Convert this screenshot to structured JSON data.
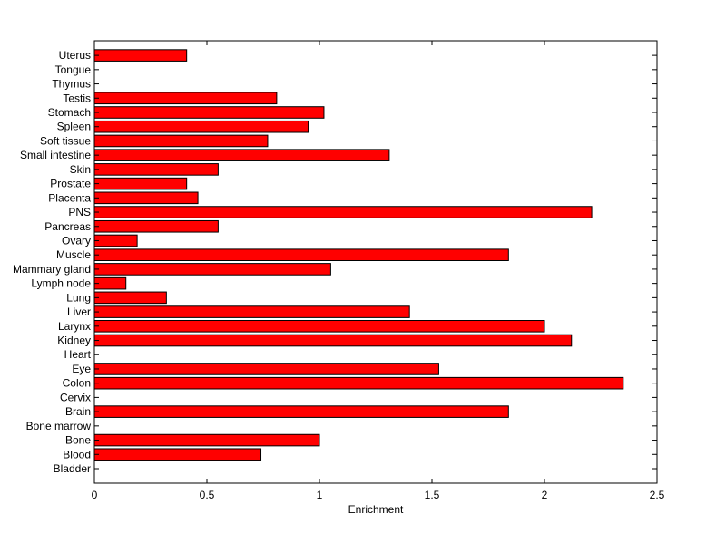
{
  "chart_data": {
    "type": "bar",
    "orientation": "horizontal",
    "xlabel": "Enrichment",
    "xlim": [
      0,
      2.5
    ],
    "xticks": [
      "0",
      "0.5",
      "1",
      "1.5",
      "2",
      "2.5"
    ],
    "grid": false,
    "bar_color": "#ff0000",
    "categories": [
      "Bladder",
      "Blood",
      "Bone",
      "Bone marrow",
      "Brain",
      "Cervix",
      "Colon",
      "Eye",
      "Heart",
      "Kidney",
      "Larynx",
      "Liver",
      "Lung",
      "Lymph node",
      "Mammary gland",
      "Muscle",
      "Ovary",
      "Pancreas",
      "PNS",
      "Placenta",
      "Prostate",
      "Skin",
      "Small intestine",
      "Soft tissue",
      "Spleen",
      "Stomach",
      "Testis",
      "Thymus",
      "Tongue",
      "Uterus"
    ],
    "values": [
      0,
      0.74,
      1.0,
      0,
      1.84,
      0,
      2.35,
      1.53,
      0,
      2.12,
      2.0,
      1.4,
      0.32,
      0.14,
      1.05,
      1.84,
      0.19,
      0.55,
      2.21,
      0.46,
      0.41,
      0.55,
      1.31,
      0.77,
      0.95,
      1.02,
      0.81,
      0,
      0,
      0.41
    ]
  }
}
